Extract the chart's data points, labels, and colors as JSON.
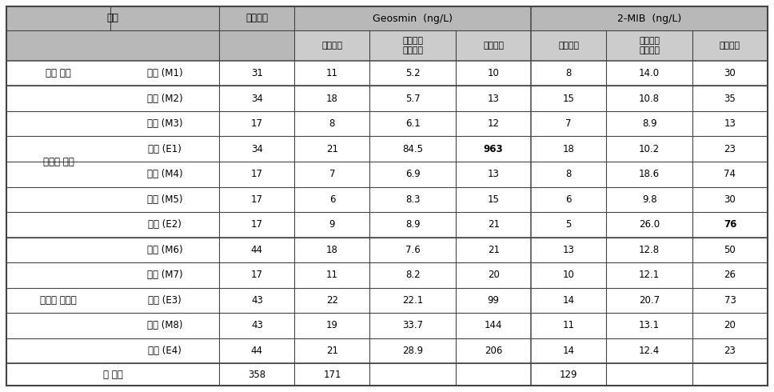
{
  "rows": [
    {
      "group": "금강 상류",
      "site": "청마 (M1)",
      "survey": "31",
      "g_det": "11",
      "g_avg": "5.2",
      "g_max": "10",
      "m_det": "8",
      "m_avg": "14.0",
      "m_max": "30",
      "g_max_bold": false,
      "m_max_bold": false
    },
    {
      "group": "대청호 상류",
      "site": "장계 (M2)",
      "survey": "34",
      "g_det": "18",
      "g_avg": "5.7",
      "g_max": "13",
      "m_det": "15",
      "m_avg": "10.8",
      "m_max": "35",
      "g_max_bold": false,
      "m_max_bold": false
    },
    {
      "group": "",
      "site": "석호 (M3)",
      "survey": "17",
      "g_det": "8",
      "g_avg": "6.1",
      "g_max": "12",
      "m_det": "7",
      "m_avg": "8.9",
      "m_max": "13",
      "g_max_bold": false,
      "m_max_bold": false
    },
    {
      "group": "",
      "site": "추소 (E1)",
      "survey": "34",
      "g_det": "21",
      "g_avg": "84.5",
      "g_max": "963",
      "m_det": "18",
      "m_avg": "10.2",
      "m_max": "23",
      "g_max_bold": true,
      "m_max_bold": false
    },
    {
      "group": "",
      "site": "대정 (M4)",
      "survey": "17",
      "g_det": "7",
      "g_avg": "6.9",
      "g_max": "13",
      "m_det": "8",
      "m_avg": "18.6",
      "m_max": "74",
      "g_max_bold": false,
      "m_max_bold": false
    },
    {
      "group": "",
      "site": "분저 (M5)",
      "survey": "17",
      "g_det": "6",
      "g_avg": "8.3",
      "g_max": "15",
      "m_det": "6",
      "m_avg": "9.8",
      "m_max": "30",
      "g_max_bold": false,
      "m_max_bold": false
    },
    {
      "group": "",
      "site": "신곡 (E2)",
      "survey": "17",
      "g_det": "9",
      "g_avg": "8.9",
      "g_max": "21",
      "m_det": "5",
      "m_avg": "26.0",
      "m_max": "76",
      "g_max_bold": false,
      "m_max_bold": true
    },
    {
      "group": "대청호 중하류",
      "site": "회남 (M6)",
      "survey": "44",
      "g_det": "18",
      "g_avg": "7.6",
      "g_max": "21",
      "m_det": "13",
      "m_avg": "12.8",
      "m_max": "50",
      "g_max_bold": false,
      "m_max_bold": false
    },
    {
      "group": "",
      "site": "법수 (M7)",
      "survey": "17",
      "g_det": "11",
      "g_avg": "8.2",
      "g_max": "20",
      "m_det": "10",
      "m_avg": "12.1",
      "m_max": "26",
      "g_max_bold": false,
      "m_max_bold": false
    },
    {
      "group": "",
      "site": "추동 (E3)",
      "survey": "43",
      "g_det": "22",
      "g_avg": "22.1",
      "g_max": "99",
      "m_det": "14",
      "m_avg": "20.7",
      "m_max": "73",
      "g_max_bold": false,
      "m_max_bold": false
    },
    {
      "group": "",
      "site": "댐앞 (M8)",
      "survey": "43",
      "g_det": "19",
      "g_avg": "33.7",
      "g_max": "144",
      "m_det": "11",
      "m_avg": "13.1",
      "m_max": "20",
      "g_max_bold": false,
      "m_max_bold": false
    },
    {
      "group": "",
      "site": "문의 (E4)",
      "survey": "44",
      "g_det": "21",
      "g_avg": "28.9",
      "g_max": "206",
      "m_det": "14",
      "m_avg": "12.4",
      "m_max": "23",
      "g_max_bold": false,
      "m_max_bold": false
    }
  ],
  "total_row": {
    "label": "총 회수",
    "survey": "358",
    "g_det": "171",
    "m_det": "129"
  },
  "header_bg": "#b8b8b8",
  "subheader_bg": "#cccccc",
  "row_bg": "#ffffff",
  "border_color": "#444444",
  "group_border_color": "#444444"
}
